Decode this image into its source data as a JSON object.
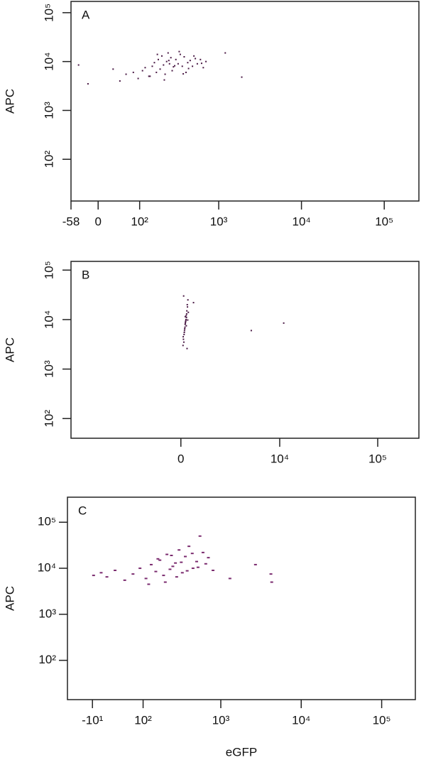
{
  "chart_data": [
    {
      "type": "scatter",
      "label": "A",
      "ylabel": "APC",
      "xscale": "biexponential",
      "yscale": "log",
      "color": "#4a1a45",
      "xlim": [
        -58,
        262144
      ],
      "ylim": [
        14,
        170000
      ],
      "xticks": [
        -58,
        0,
        {
          "value": 100,
          "label": "10²"
        },
        {
          "value": 1000,
          "label": "10³"
        },
        {
          "value": 10000,
          "label": "10⁴"
        },
        {
          "value": 100000,
          "label": "10⁵"
        }
      ],
      "yticks": [
        {
          "value": 100,
          "label": "10²"
        },
        {
          "value": 1000,
          "label": "10³"
        },
        {
          "value": 10000,
          "label": "10⁴"
        },
        {
          "value": 100000,
          "label": "10⁵"
        }
      ],
      "x": [
        30,
        45,
        60,
        80,
        95,
        110,
        120,
        135,
        150,
        160,
        170,
        180,
        190,
        200,
        210,
        220,
        230,
        240,
        250,
        260,
        270,
        280,
        300,
        320,
        340,
        360,
        380,
        400,
        420,
        450,
        480,
        500,
        550,
        600,
        650,
        700,
        1200,
        1900,
        -40,
        -20,
        140,
        175,
        215,
        245,
        290,
        330,
        370,
        430,
        520,
        620
      ],
      "values": [
        7000,
        4000,
        5500,
        6000,
        4500,
        6500,
        7500,
        5000,
        8000,
        9500,
        6000,
        11000,
        7000,
        13000,
        8500,
        5500,
        10000,
        15000,
        9000,
        12000,
        6500,
        7800,
        11000,
        9000,
        14000,
        8000,
        12500,
        6000,
        9500,
        10500,
        8000,
        13000,
        9000,
        11000,
        7500,
        10000,
        15000,
        4800,
        8500,
        3500,
        5000,
        14000,
        4200,
        10500,
        8200,
        16000,
        5600,
        7200,
        11500,
        9200
      ]
    },
    {
      "type": "scatter",
      "label": "B",
      "ylabel": "APC",
      "xscale": "biexponential",
      "yscale": "log",
      "color": "#4a1a45",
      "xlim": [
        -13000,
        262144
      ],
      "ylim": [
        40,
        150000
      ],
      "xticks": [
        0,
        {
          "value": 10000,
          "label": "10⁴"
        },
        {
          "value": 100000,
          "label": "10⁵"
        }
      ],
      "yticks": [
        {
          "value": 100,
          "label": "10²"
        },
        {
          "value": 1000,
          "label": "10³"
        },
        {
          "value": 10000,
          "label": "10⁴"
        },
        {
          "value": 100000,
          "label": "10⁵"
        }
      ],
      "x": [
        100,
        150,
        200,
        250,
        300,
        120,
        180,
        220,
        280,
        330,
        140,
        190,
        240,
        260,
        310,
        160,
        210,
        270,
        230,
        170,
        130,
        290,
        350,
        600,
        5000,
        11000,
        110,
        205,
        255,
        320
      ],
      "values": [
        3000,
        5000,
        8000,
        12000,
        20000,
        4000,
        6500,
        9000,
        15000,
        25000,
        3500,
        7000,
        10000,
        11000,
        18000,
        5500,
        8500,
        13000,
        9500,
        6000,
        30000,
        2600,
        14000,
        22000,
        6000,
        8500,
        4500,
        11500,
        7500,
        9800
      ]
    },
    {
      "type": "scatter",
      "label": "C",
      "ylabel": "APC",
      "xlabel": "eGFP",
      "xscale": "biexponential",
      "yscale": "log",
      "color": "#7a2a6e",
      "xlim": [
        -60,
        262144
      ],
      "ylim": [
        14,
        350000
      ],
      "xticks": [
        {
          "value": -10,
          "label": "-10¹"
        },
        {
          "value": 100,
          "label": "10²"
        },
        {
          "value": 1000,
          "label": "10³"
        },
        {
          "value": 10000,
          "label": "10⁴"
        },
        {
          "value": 100000,
          "label": "10⁵"
        }
      ],
      "yticks": [
        {
          "value": 100,
          "label": "10²"
        },
        {
          "value": 1000,
          "label": "10³"
        },
        {
          "value": 10000,
          "label": "10⁴"
        },
        {
          "value": 100000,
          "label": "10⁵"
        }
      ],
      "x": [
        -8,
        5,
        15,
        30,
        50,
        70,
        90,
        110,
        130,
        150,
        170,
        190,
        210,
        230,
        250,
        270,
        300,
        330,
        360,
        400,
        450,
        500,
        550,
        600,
        700,
        800,
        1300,
        2700,
        4200,
        4300,
        120,
        160,
        200,
        240,
        280,
        320,
        380,
        440,
        520,
        650
      ],
      "values": [
        7000,
        8000,
        6500,
        9000,
        5500,
        7500,
        10000,
        6000,
        12000,
        8500,
        15000,
        7000,
        20000,
        9500,
        11000,
        13000,
        25000,
        8000,
        18000,
        30000,
        10000,
        14000,
        50000,
        22000,
        17000,
        9000,
        6000,
        12000,
        7500,
        5000,
        4500,
        16000,
        5000,
        19000,
        6500,
        13500,
        8800,
        21000,
        10500,
        12500
      ]
    }
  ]
}
